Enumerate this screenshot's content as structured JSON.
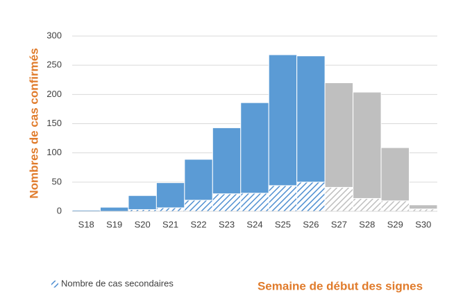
{
  "chart_data": {
    "type": "bar",
    "stacked": true,
    "categories": [
      "S18",
      "S19",
      "S20",
      "S21",
      "S22",
      "S23",
      "S24",
      "S25",
      "S26",
      "S27",
      "S28",
      "S29",
      "S30"
    ],
    "series": [
      {
        "name": "Nombre de cas secondaires",
        "pattern": "hatch",
        "colors": [
          "#4f8fd1",
          "#4f8fd1",
          "#4f8fd1",
          "#4f8fd1",
          "#4f8fd1",
          "#4f8fd1",
          "#4f8fd1",
          "#4f8fd1",
          "#4f8fd1",
          "#bfbfbf",
          "#bfbfbf",
          "#bfbfbf",
          "#bfbfbf"
        ],
        "values": [
          0,
          0,
          3,
          6,
          19,
          30,
          31,
          44,
          50,
          41,
          22,
          18,
          4
        ]
      },
      {
        "colors": [
          "#5b9bd5",
          "#5b9bd5",
          "#5b9bd5",
          "#5b9bd5",
          "#5b9bd5",
          "#5b9bd5",
          "#5b9bd5",
          "#5b9bd5",
          "#5b9bd5",
          "#bfbfbf",
          "#bfbfbf",
          "#bfbfbf",
          "#bfbfbf"
        ],
        "values": [
          2,
          7,
          24,
          43,
          70,
          113,
          155,
          224,
          216,
          179,
          182,
          91,
          7
        ]
      }
    ],
    "ylabel": "Nombres de cas confirmés",
    "xlabel": "Semaine de début des signes",
    "ylim": [
      0,
      300
    ],
    "yticks": [
      0,
      50,
      100,
      150,
      200,
      250,
      300
    ],
    "grid": true,
    "legend": "lower left"
  }
}
